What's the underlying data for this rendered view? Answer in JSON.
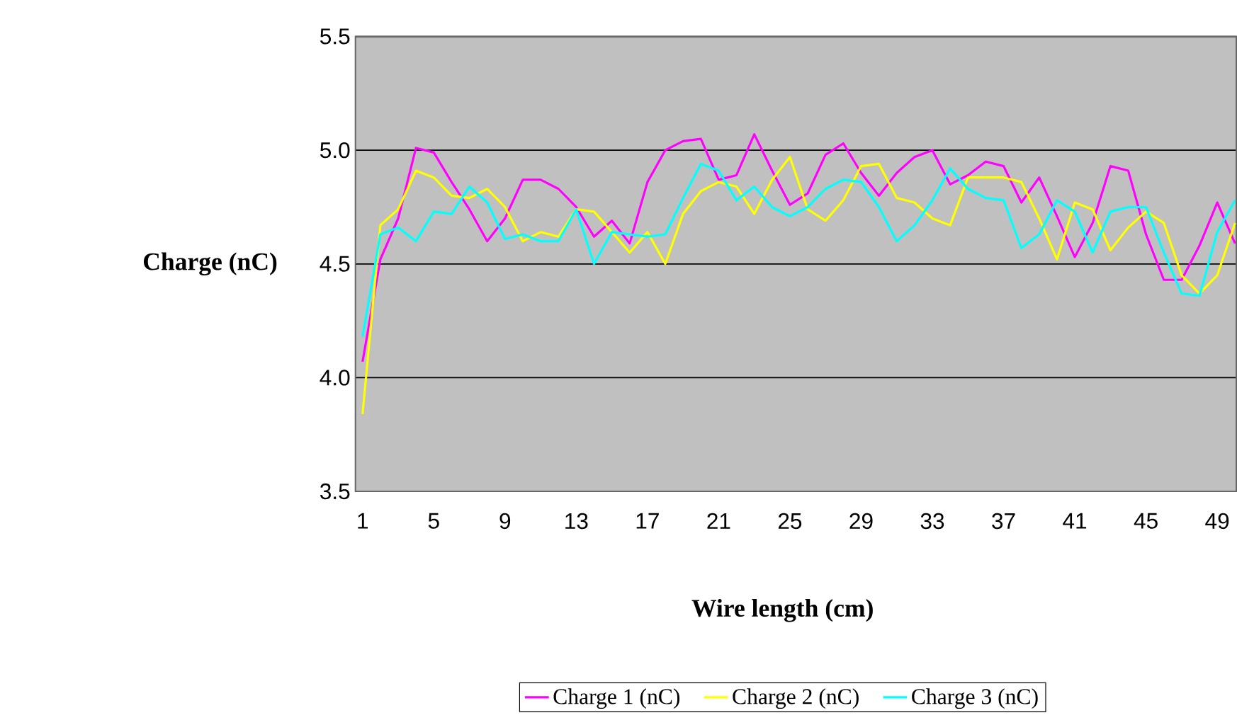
{
  "chart_data": {
    "type": "line",
    "xlabel": "Wire length (cm)",
    "ylabel": "Charge (nC)",
    "categories": [
      "1",
      null,
      null,
      null,
      "5",
      null,
      null,
      null,
      "9",
      null,
      null,
      null,
      "13",
      null,
      null,
      null,
      "17",
      null,
      null,
      null,
      "21",
      null,
      null,
      null,
      "25",
      null,
      null,
      null,
      "29",
      null,
      null,
      null,
      "33",
      null,
      null,
      null,
      "37",
      null,
      null,
      null,
      "41",
      null,
      null,
      null,
      "45",
      null,
      null,
      null,
      "49",
      null
    ],
    "series": [
      {
        "name": "Charge 1 (nC)",
        "color": "#ff00ff",
        "values": [
          4.07,
          4.52,
          4.7,
          5.01,
          4.99,
          4.86,
          4.74,
          4.6,
          4.7,
          4.87,
          4.87,
          4.83,
          4.75,
          4.62,
          4.69,
          4.59,
          4.86,
          5.0,
          5.04,
          5.05,
          4.87,
          4.89,
          5.07,
          4.91,
          4.76,
          4.81,
          4.98,
          5.03,
          4.9,
          4.8,
          4.9,
          4.97,
          5.0,
          4.85,
          4.89,
          4.95,
          4.93,
          4.77,
          4.88,
          4.71,
          4.53,
          4.68,
          4.93,
          4.91,
          4.63,
          4.43,
          4.43,
          4.58,
          4.77,
          4.59
        ]
      },
      {
        "name": "Charge 2 (nC)",
        "color": "#ffff00",
        "values": [
          3.84,
          4.67,
          4.74,
          4.91,
          4.88,
          4.8,
          4.79,
          4.83,
          4.75,
          4.6,
          4.64,
          4.62,
          4.74,
          4.73,
          4.64,
          4.55,
          4.64,
          4.5,
          4.72,
          4.82,
          4.86,
          4.84,
          4.72,
          4.87,
          4.97,
          4.74,
          4.69,
          4.78,
          4.93,
          4.94,
          4.79,
          4.77,
          4.7,
          4.67,
          4.88,
          4.88,
          4.88,
          4.86,
          4.7,
          4.52,
          4.77,
          4.74,
          4.56,
          4.66,
          4.73,
          4.68,
          4.45,
          4.37,
          4.45,
          4.68
        ]
      },
      {
        "name": "Charge 3 (nC)",
        "color": "#00ffff",
        "values": [
          4.18,
          4.63,
          4.66,
          4.6,
          4.73,
          4.72,
          4.84,
          4.77,
          4.61,
          4.63,
          4.6,
          4.6,
          4.74,
          4.5,
          4.64,
          4.63,
          4.62,
          4.63,
          4.79,
          4.94,
          4.91,
          4.78,
          4.84,
          4.75,
          4.71,
          4.75,
          4.83,
          4.87,
          4.86,
          4.75,
          4.6,
          4.67,
          4.78,
          4.92,
          4.83,
          4.79,
          4.78,
          4.57,
          4.63,
          4.78,
          4.73,
          4.55,
          4.73,
          4.75,
          4.75,
          4.55,
          4.37,
          4.36,
          4.64,
          4.78
        ]
      }
    ],
    "ylim": [
      3.5,
      5.5
    ],
    "yticks": [
      {
        "value": 3.5,
        "label": "3.5"
      },
      {
        "value": 4.0,
        "label": "4.0"
      },
      {
        "value": 4.5,
        "label": "4.5"
      },
      {
        "value": 5.0,
        "label": "5.0"
      },
      {
        "value": 5.5,
        "label": "5.5"
      }
    ],
    "grid": "y",
    "legend": "bottom",
    "marker": "none",
    "line_style": "solid"
  }
}
